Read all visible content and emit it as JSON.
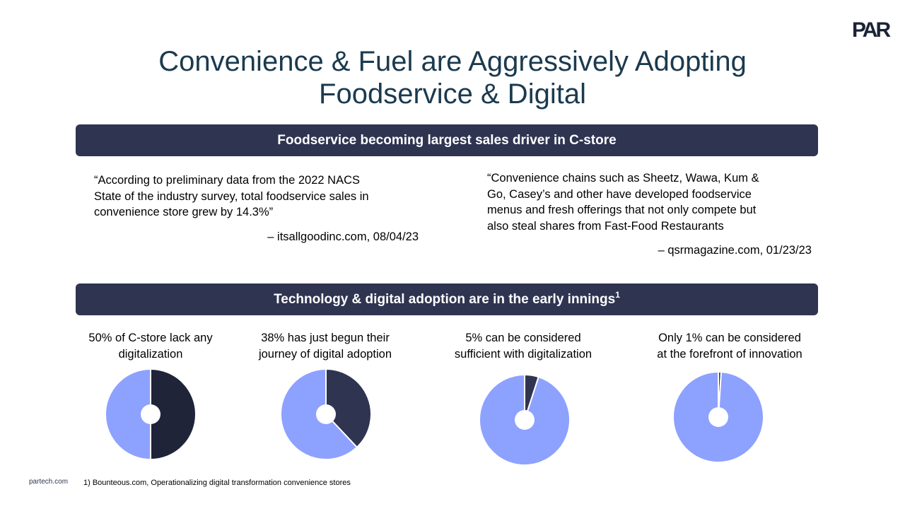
{
  "logo": {
    "text": "PAR"
  },
  "title": {
    "line1": "Convenience & Fuel are Aggressively Adopting",
    "line2": "Foodservice & Digital"
  },
  "section1": {
    "heading": "Foodservice becoming largest sales driver in C-store",
    "quotes": [
      {
        "lines": [
          "“According to preliminary data from the 2022 NACS",
          "State of the industry survey, total foodservice sales in",
          "convenience store grew by 14.3%”"
        ],
        "source": "– itsallgoodinc.com, 08/04/23"
      },
      {
        "lines": [
          "“Convenience chains such as Sheetz, Wawa, Kum &",
          "Go, Casey’s and other have developed foodservice",
          "menus and fresh offerings that not only compete but",
          "also steal shares from Fast-Food Restaurants"
        ],
        "source": "– qsrmagazine.com, 01/23/23"
      }
    ]
  },
  "section2": {
    "heading": "Technology & digital adoption are in the early innings",
    "heading_sup": "1"
  },
  "chart_data": [
    {
      "type": "pie",
      "title_lines": [
        "50% of C-store lack any",
        "digitalization"
      ],
      "values": [
        50,
        50
      ],
      "colors": [
        "#1f2438",
        "#8da1ff"
      ]
    },
    {
      "type": "pie",
      "title_lines": [
        "38% has just begun their",
        "journey of digital adoption"
      ],
      "values": [
        38,
        62
      ],
      "colors": [
        "#2f3451",
        "#8da1ff"
      ]
    },
    {
      "type": "pie",
      "title_lines": [
        "5% can be considered",
        "sufficient with digitalization"
      ],
      "values": [
        5,
        95
      ],
      "colors": [
        "#2f3451",
        "#8da1ff"
      ]
    },
    {
      "type": "pie",
      "title_lines": [
        "Only 1% can be considered",
        "at the forefront of innovation"
      ],
      "values": [
        1,
        99
      ],
      "colors": [
        "#2f3451",
        "#8da1ff"
      ]
    }
  ],
  "footer": {
    "website": "partech.com",
    "footnote": "1) Bounteous.com, Operationalizing digital transformation convenience stores"
  }
}
